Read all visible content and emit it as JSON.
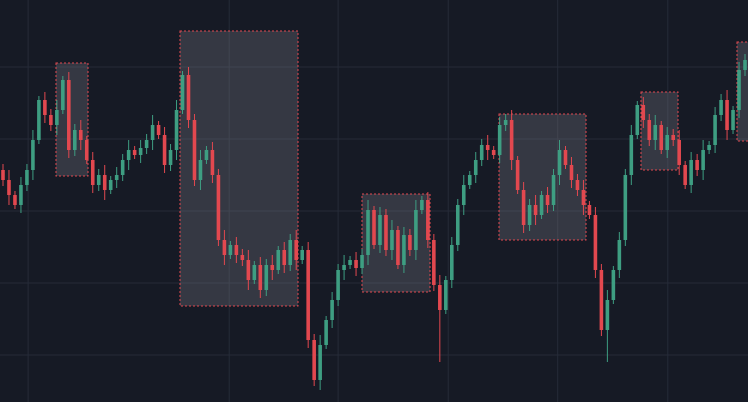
{
  "chart_data": {
    "type": "candlestick",
    "open": [
      232,
      222,
      207,
      197,
      217,
      232,
      262,
      302,
      287,
      277,
      292,
      322,
      252,
      272,
      262,
      242,
      217,
      227,
      212,
      222,
      227,
      242,
      252,
      247,
      254,
      262,
      277,
      267,
      237,
      252,
      292,
      327,
      282,
      222,
      242,
      252,
      227,
      162,
      147,
      157,
      147,
      142,
      122,
      137,
      112,
      137,
      132,
      152,
      137,
      162,
      142,
      152,
      62,
      22,
      57,
      82,
      102,
      132,
      137,
      142,
      134,
      147,
      192,
      157,
      187,
      152,
      172,
      137,
      167,
      152,
      192,
      202,
      162,
      117,
      92,
      122,
      157,
      197,
      217,
      227,
      242,
      257,
      252,
      247,
      277,
      282,
      242,
      212,
      177,
      197,
      187,
      207,
      197,
      227,
      252,
      237,
      222,
      212,
      197,
      187,
      132,
      72,
      102,
      132,
      162,
      227,
      267,
      297,
      282,
      262,
      277,
      252,
      267,
      262,
      237,
      217,
      242,
      232,
      252,
      257,
      287,
      302,
      272,
      292,
      332
    ],
    "high": [
      238,
      232,
      211,
      225,
      238,
      272,
      306,
      310,
      293,
      302,
      326,
      330,
      278,
      282,
      266,
      250,
      233,
      237,
      226,
      235,
      248,
      262,
      256,
      262,
      268,
      287,
      281,
      275,
      258,
      302,
      331,
      335,
      288,
      252,
      256,
      260,
      233,
      172,
      161,
      165,
      153,
      152,
      141,
      145,
      143,
      147,
      156,
      160,
      168,
      172,
      156,
      160,
      68,
      67,
      86,
      110,
      138,
      147,
      146,
      150,
      153,
      202,
      196,
      195,
      193,
      182,
      176,
      175,
      173,
      202,
      206,
      210,
      168,
      127,
      126,
      165,
      203,
      227,
      231,
      250,
      263,
      267,
      256,
      285,
      288,
      292,
      246,
      220,
      203,
      207,
      211,
      215,
      233,
      262,
      256,
      245,
      228,
      222,
      201,
      195,
      138,
      112,
      136,
      170,
      233,
      277,
      301,
      305,
      288,
      287,
      281,
      275,
      273,
      272,
      241,
      250,
      248,
      262,
      261,
      295,
      308,
      312,
      296,
      340,
      348
    ],
    "low": [
      216,
      197,
      193,
      189,
      211,
      222,
      258,
      279,
      271,
      267,
      288,
      244,
      246,
      252,
      238,
      209,
      211,
      202,
      208,
      214,
      221,
      232,
      243,
      239,
      248,
      252,
      263,
      229,
      231,
      242,
      288,
      274,
      216,
      212,
      238,
      219,
      156,
      137,
      143,
      139,
      136,
      112,
      118,
      104,
      106,
      122,
      128,
      129,
      131,
      132,
      138,
      54,
      16,
      12,
      53,
      74,
      96,
      122,
      133,
      126,
      128,
      137,
      153,
      149,
      146,
      142,
      133,
      129,
      146,
      142,
      188,
      154,
      111,
      40,
      88,
      114,
      151,
      187,
      213,
      219,
      236,
      242,
      243,
      239,
      271,
      232,
      208,
      169,
      171,
      177,
      183,
      189,
      191,
      217,
      233,
      214,
      206,
      187,
      183,
      124,
      66,
      40,
      98,
      124,
      156,
      217,
      263,
      274,
      256,
      252,
      248,
      244,
      256,
      227,
      213,
      209,
      226,
      222,
      248,
      249,
      281,
      262,
      268,
      284,
      326
    ],
    "close": [
      222,
      207,
      197,
      217,
      232,
      262,
      302,
      287,
      277,
      292,
      322,
      252,
      272,
      262,
      242,
      217,
      227,
      212,
      222,
      227,
      242,
      252,
      247,
      254,
      262,
      277,
      267,
      237,
      252,
      292,
      327,
      282,
      222,
      242,
      252,
      227,
      162,
      147,
      157,
      147,
      142,
      122,
      137,
      112,
      137,
      132,
      152,
      137,
      162,
      142,
      152,
      62,
      22,
      57,
      82,
      102,
      132,
      137,
      142,
      134,
      147,
      192,
      157,
      187,
      152,
      172,
      137,
      167,
      152,
      192,
      202,
      162,
      117,
      92,
      122,
      157,
      197,
      217,
      227,
      242,
      257,
      252,
      247,
      277,
      282,
      242,
      212,
      177,
      197,
      187,
      207,
      197,
      227,
      252,
      237,
      222,
      212,
      197,
      187,
      132,
      72,
      102,
      132,
      162,
      227,
      267,
      297,
      282,
      262,
      277,
      252,
      267,
      262,
      237,
      217,
      242,
      232,
      252,
      257,
      287,
      302,
      272,
      292,
      332,
      342
    ],
    "up_color": "#3e9e82",
    "down_color": "#e2484f",
    "xlim": [
      -0.5,
      124.5
    ],
    "xticks": [
      4.2,
      37.8,
      56,
      74.4,
      92.7,
      111.1
    ],
    "ylim": [
      0,
      402
    ],
    "yticks": [
      47,
      119,
      191,
      263,
      335
    ],
    "grid": true,
    "grid_color": "#262b38"
  }
}
